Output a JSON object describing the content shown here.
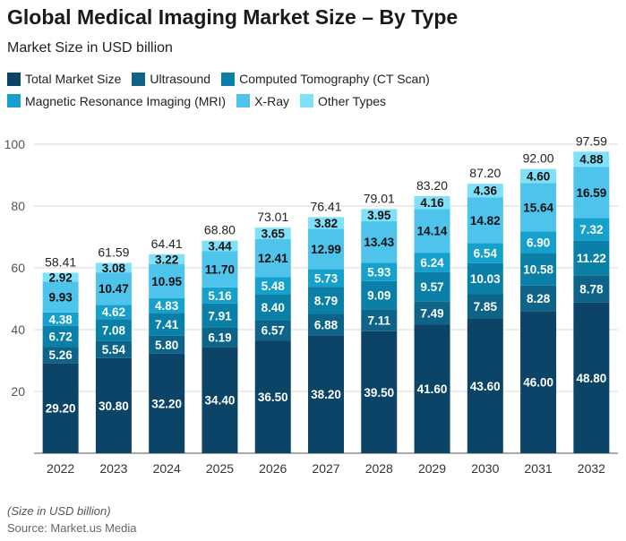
{
  "title": "Global Medical Imaging Market Size – By Type",
  "subtitle": "Market Size in USD billion",
  "note": "(Size in USD billion)",
  "source": "Source: Market.us Media",
  "chart_data": {
    "type": "bar",
    "stacked": true,
    "categories": [
      "2022",
      "2023",
      "2024",
      "2025",
      "2026",
      "2027",
      "2028",
      "2029",
      "2030",
      "2031",
      "2032"
    ],
    "totals": [
      "58.41",
      "61.59",
      "64.41",
      "68.80",
      "73.01",
      "76.41",
      "79.01",
      "83.20",
      "87.20",
      "92.00",
      "97.59"
    ],
    "series": [
      {
        "name": "Total Market Size",
        "color": "#0b4466",
        "values": [
          29.2,
          30.8,
          32.2,
          34.4,
          36.5,
          38.2,
          39.5,
          41.6,
          43.6,
          46.0,
          48.8
        ]
      },
      {
        "name": "Ultrasound",
        "color": "#0d6388",
        "values": [
          5.26,
          5.54,
          5.8,
          6.19,
          6.57,
          6.88,
          7.11,
          7.49,
          7.85,
          8.28,
          8.78
        ]
      },
      {
        "name": "Computed Tomography (CT Scan)",
        "color": "#0a80a8",
        "values": [
          6.72,
          7.08,
          7.41,
          7.91,
          8.4,
          8.79,
          9.09,
          9.57,
          10.03,
          10.58,
          11.22
        ]
      },
      {
        "name": "Magnetic Resonance Imaging (MRI)",
        "color": "#16a1cd",
        "values": [
          4.38,
          4.62,
          4.83,
          5.16,
          5.48,
          5.73,
          5.93,
          6.24,
          6.54,
          6.9,
          7.32
        ]
      },
      {
        "name": "X-Ray",
        "color": "#4ec4ed",
        "values": [
          9.93,
          10.47,
          10.95,
          11.7,
          12.41,
          12.99,
          13.43,
          14.14,
          14.82,
          15.64,
          16.59
        ]
      },
      {
        "name": "Other Types",
        "color": "#7fe1f8",
        "values": [
          2.92,
          3.08,
          3.22,
          3.44,
          3.65,
          3.82,
          3.95,
          4.16,
          4.36,
          4.6,
          4.88
        ]
      }
    ],
    "yticks": [
      20,
      40,
      60,
      80,
      100
    ],
    "ylim": [
      0,
      100
    ],
    "grid": true,
    "legend": "top"
  }
}
